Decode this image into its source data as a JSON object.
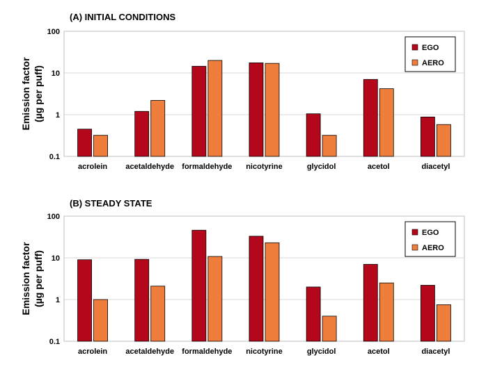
{
  "chart_data": [
    {
      "type": "bar",
      "title": "(A) INITIAL CONDITIONS",
      "ylabel_line1": "Emission factor",
      "ylabel_line2": "(µg per puff)",
      "yscale": "log",
      "ylim": [
        0.1,
        100
      ],
      "yticks": [
        "100",
        "10",
        "1",
        "0.1"
      ],
      "grid": true,
      "legend_position": "top-right",
      "categories": [
        "acrolein",
        "acetaldehyde",
        "formaldehyde",
        "nicotyrine",
        "glycidol",
        "acetol",
        "diacetyl"
      ],
      "series": [
        {
          "name": "EGO",
          "color": "#b5071b",
          "values": [
            0.45,
            1.2,
            14.5,
            17.5,
            1.05,
            7.0,
            0.88
          ]
        },
        {
          "name": "AERO",
          "color": "#ef7d3c",
          "values": [
            0.32,
            2.2,
            20.0,
            17.0,
            0.32,
            4.2,
            0.58
          ]
        }
      ]
    },
    {
      "type": "bar",
      "title": "(B) STEADY STATE",
      "ylabel_line1": "Emission factor",
      "ylabel_line2": "(µg per puff)",
      "yscale": "log",
      "ylim": [
        0.1,
        100
      ],
      "yticks": [
        "100",
        "10",
        "1",
        "0.1"
      ],
      "grid": true,
      "legend_position": "top-right",
      "categories": [
        "acrolein",
        "acetaldehyde",
        "formaldehyde",
        "nicotyrine",
        "glycidol",
        "acetol",
        "diacetyl"
      ],
      "series": [
        {
          "name": "EGO",
          "color": "#b5071b",
          "values": [
            9.0,
            9.2,
            46.0,
            33.0,
            2.0,
            7.0,
            2.2
          ]
        },
        {
          "name": "AERO",
          "color": "#ef7d3c",
          "values": [
            1.0,
            2.1,
            10.8,
            23.0,
            0.4,
            2.5,
            0.75
          ]
        }
      ]
    }
  ]
}
